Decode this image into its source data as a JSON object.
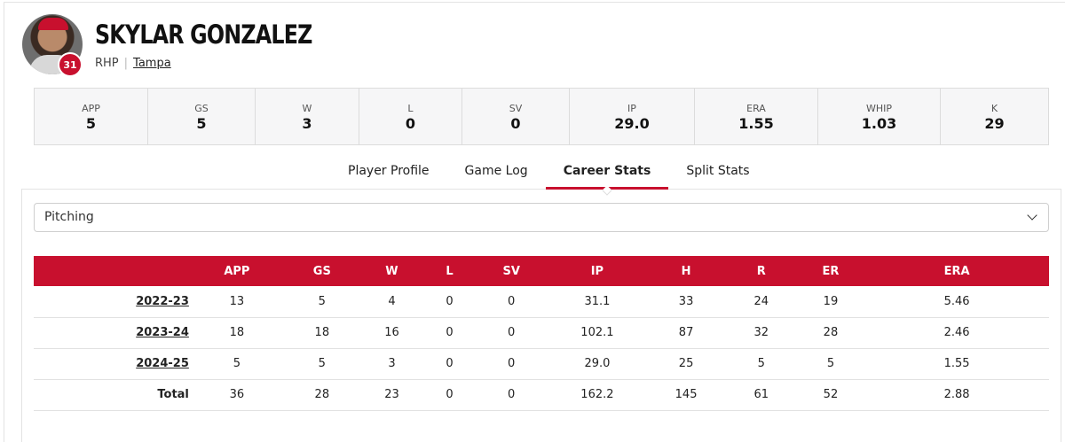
{
  "player": {
    "name": "SKYLAR GONZALEZ",
    "number": "31",
    "position": "RHP",
    "team": "Tampa"
  },
  "summary": [
    {
      "label": "APP",
      "value": "5"
    },
    {
      "label": "GS",
      "value": "5"
    },
    {
      "label": "W",
      "value": "3"
    },
    {
      "label": "L",
      "value": "0"
    },
    {
      "label": "SV",
      "value": "0"
    },
    {
      "label": "IP",
      "value": "29.0"
    },
    {
      "label": "ERA",
      "value": "1.55"
    },
    {
      "label": "WHIP",
      "value": "1.03"
    },
    {
      "label": "K",
      "value": "29"
    }
  ],
  "tabs": [
    {
      "label": "Player Profile",
      "active": false
    },
    {
      "label": "Game Log",
      "active": false
    },
    {
      "label": "Career Stats",
      "active": true
    },
    {
      "label": "Split Stats",
      "active": false
    }
  ],
  "stat_type_select": {
    "value": "Pitching"
  },
  "table": {
    "columns": [
      "",
      "APP",
      "GS",
      "W",
      "L",
      "SV",
      "IP",
      "H",
      "R",
      "ER",
      "ERA"
    ],
    "rows": [
      {
        "season": "2022-23",
        "cells": [
          "13",
          "5",
          "4",
          "0",
          "0",
          "31.1",
          "33",
          "24",
          "19",
          "5.46"
        ]
      },
      {
        "season": "2023-24",
        "cells": [
          "18",
          "18",
          "16",
          "0",
          "0",
          "102.1",
          "87",
          "32",
          "28",
          "2.46"
        ]
      },
      {
        "season": "2024-25",
        "cells": [
          "5",
          "5",
          "3",
          "0",
          "0",
          "29.0",
          "25",
          "5",
          "5",
          "1.55"
        ]
      }
    ],
    "total": {
      "season": "Total",
      "cells": [
        "36",
        "28",
        "23",
        "0",
        "0",
        "162.2",
        "145",
        "61",
        "52",
        "2.88"
      ]
    }
  },
  "colors": {
    "accent": "#c8102e"
  }
}
